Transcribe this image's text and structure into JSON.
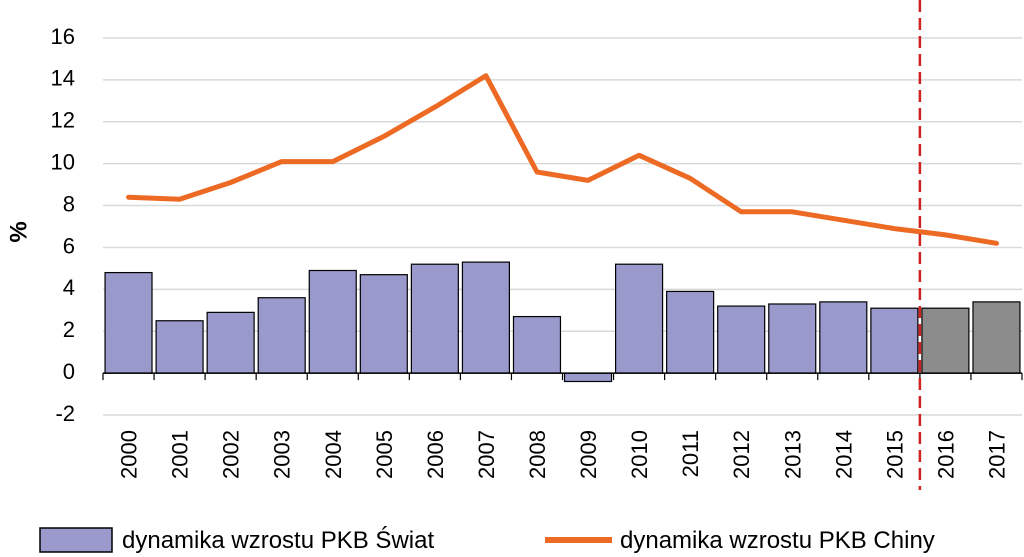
{
  "chart_data": {
    "type": "bar+line",
    "title": "",
    "xlabel": "",
    "ylabel": "%",
    "ylim": [
      -2,
      16
    ],
    "yticks": [
      -2,
      0,
      2,
      4,
      6,
      8,
      10,
      12,
      14,
      16
    ],
    "grid": true,
    "legend_position": "bottom",
    "categories": [
      "2000",
      "2001",
      "2002",
      "2003",
      "2004",
      "2005",
      "2006",
      "2007",
      "2008",
      "2009",
      "2010",
      "2011",
      "2012",
      "2013",
      "2014",
      "2015",
      "2016",
      "2017"
    ],
    "forecast_from": "2016",
    "series": [
      {
        "name": "dynamika wzrostu PKB Świat",
        "type": "bar",
        "color": "#9999cc",
        "forecast_color": "#8c8c8c",
        "values": [
          4.8,
          2.5,
          2.9,
          3.6,
          4.9,
          4.7,
          5.2,
          5.3,
          2.7,
          -0.4,
          5.2,
          3.9,
          3.2,
          3.3,
          3.4,
          3.1,
          3.1,
          3.4
        ]
      },
      {
        "name": "dynamika wzrostu PKB Chiny",
        "type": "line",
        "color": "#ed6a25",
        "values": [
          8.4,
          8.3,
          9.1,
          10.1,
          10.1,
          11.3,
          12.7,
          14.2,
          9.6,
          9.2,
          10.4,
          9.3,
          7.7,
          7.7,
          7.3,
          6.9,
          6.6,
          6.2
        ]
      }
    ],
    "divider_color": "#cc2222"
  }
}
